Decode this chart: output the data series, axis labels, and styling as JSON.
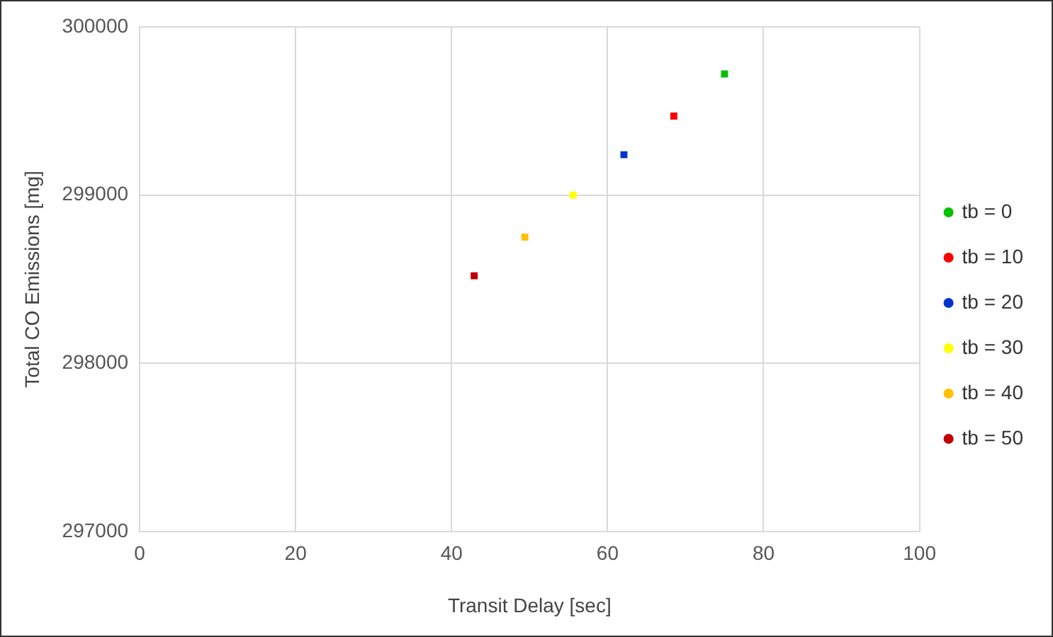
{
  "chart_data": {
    "type": "scatter",
    "xlabel": "Transit Delay [sec]",
    "ylabel": "Total CO Emissions [mg]",
    "xlim": [
      0,
      100
    ],
    "xticks": [
      0,
      20,
      40,
      60,
      80,
      100
    ],
    "ylim": [
      297000,
      300000
    ],
    "yticks": [
      297000,
      298000,
      299000,
      300000
    ],
    "grid": true,
    "legend": "right",
    "marker": "square",
    "series": [
      {
        "name": "tb = 0",
        "color": "#00c000",
        "x": [
          75.0
        ],
        "values": [
          299720
        ]
      },
      {
        "name": "tb = 10",
        "color": "#ff0000",
        "x": [
          68.5
        ],
        "values": [
          299470
        ]
      },
      {
        "name": "tb = 20",
        "color": "#0033cc",
        "x": [
          62.1
        ],
        "values": [
          299240
        ]
      },
      {
        "name": "tb = 30",
        "color": "#ffff00",
        "x": [
          55.6
        ],
        "values": [
          299000
        ]
      },
      {
        "name": "tb = 40",
        "color": "#ffc000",
        "x": [
          49.4
        ],
        "values": [
          298750
        ]
      },
      {
        "name": "tb = 50",
        "color": "#c00000",
        "x": [
          42.9
        ],
        "values": [
          298520
        ]
      }
    ]
  }
}
